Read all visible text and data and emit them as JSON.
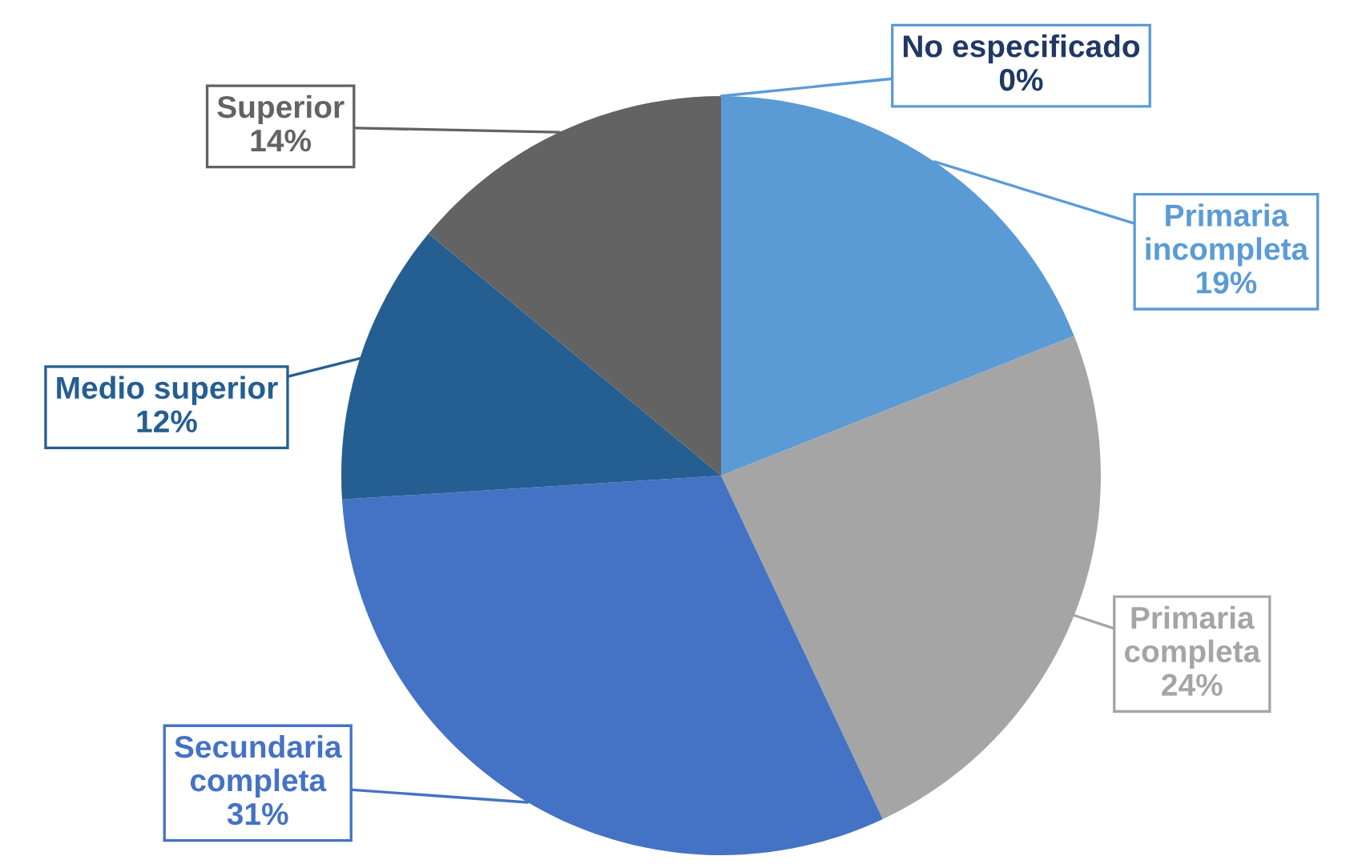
{
  "chart_data": {
    "type": "pie",
    "categories": [
      "No especificado",
      "Primaria incompleta",
      "Primaria completa",
      "Secundaria completa",
      "Medio superior",
      "Superior"
    ],
    "values": [
      0,
      19,
      24,
      31,
      12,
      14
    ],
    "value_labels": [
      "0%",
      "19%",
      "24%",
      "31%",
      "12%",
      "14%"
    ],
    "colors": [
      "#5b9bd5",
      "#5b9bd5",
      "#a5a5a5",
      "#4472c4",
      "#255e91",
      "#636363"
    ],
    "legend": false
  }
}
